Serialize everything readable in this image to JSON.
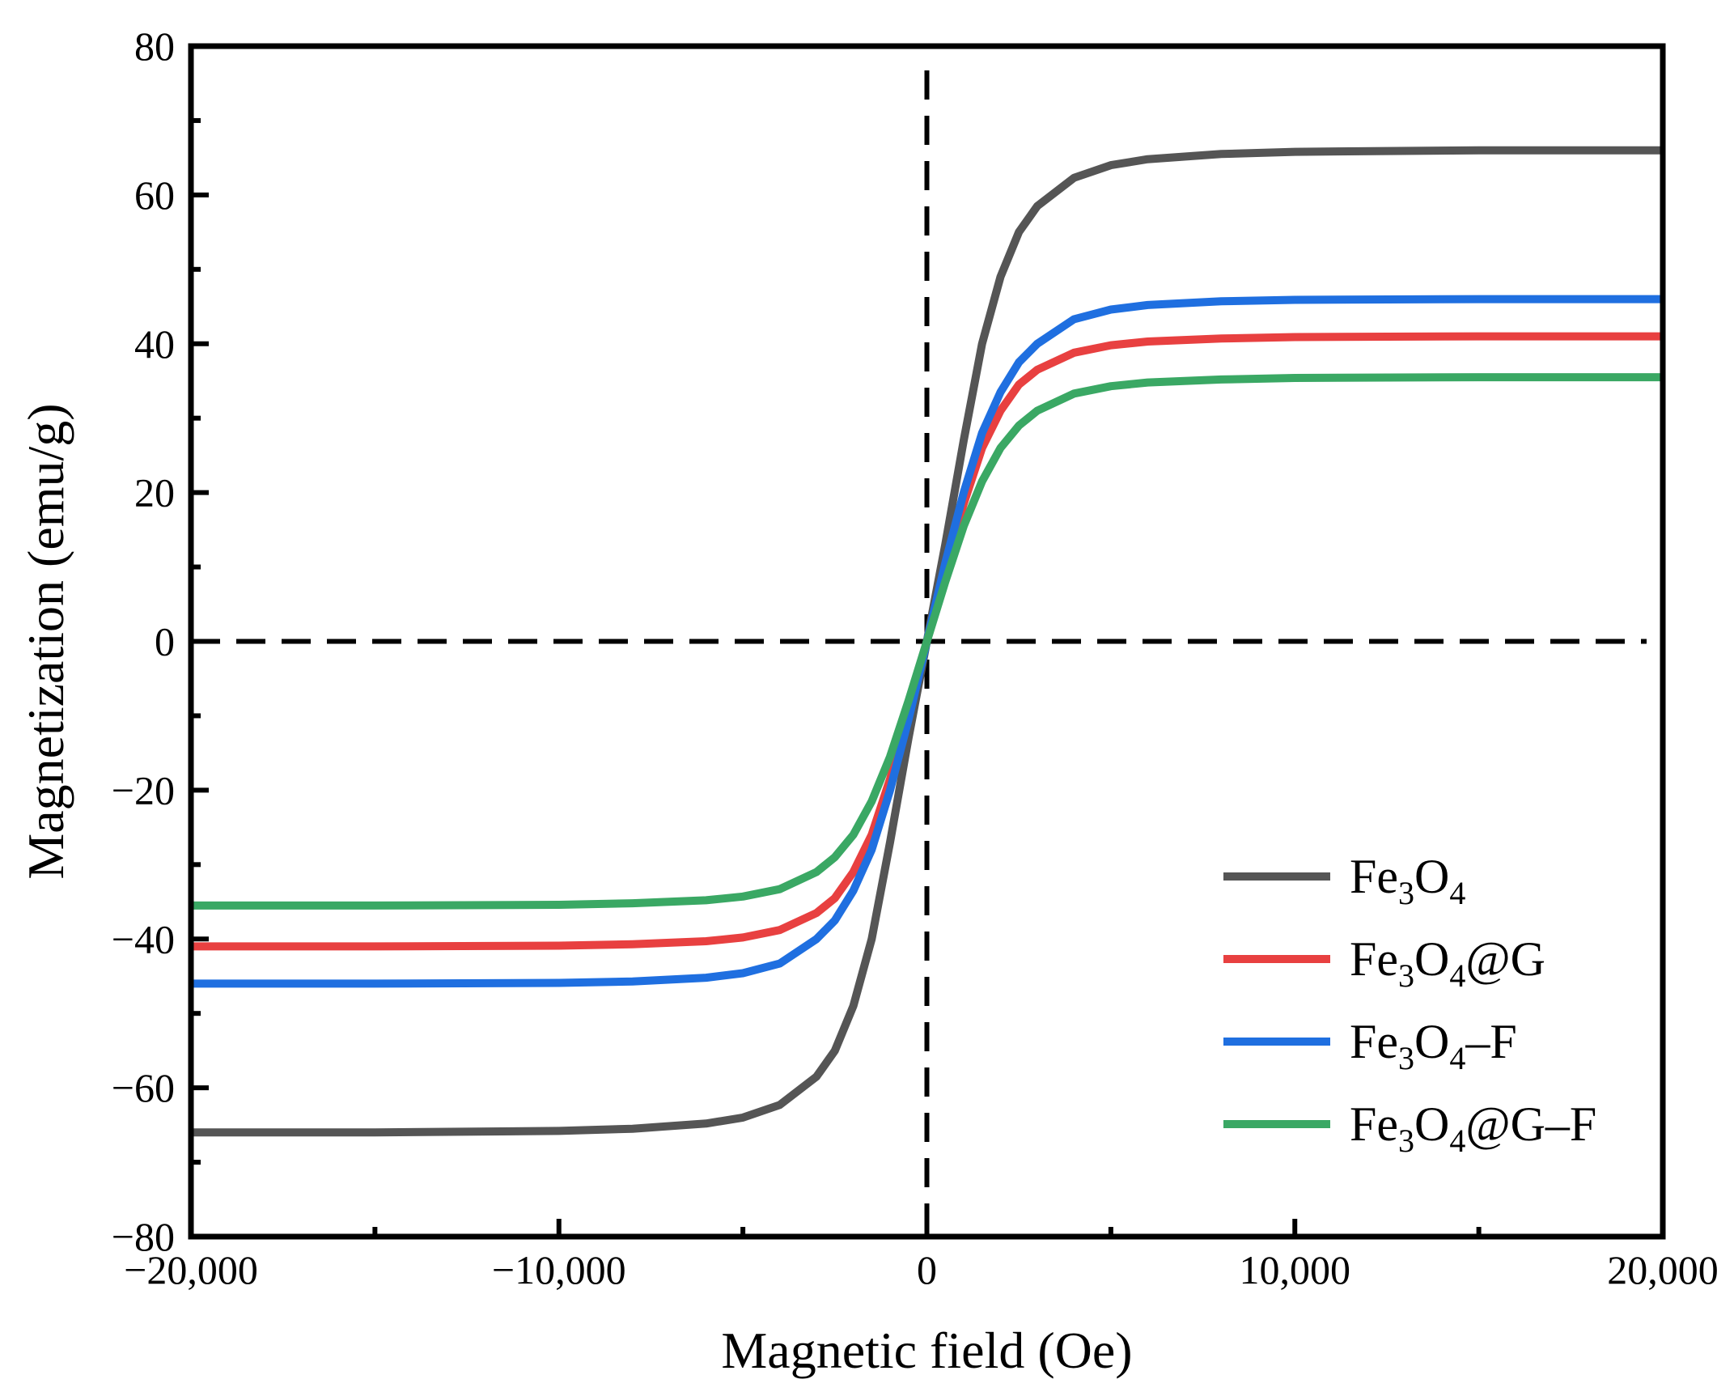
{
  "chart_data": {
    "type": "line",
    "title": "",
    "xlabel": "Magnetic field (Oe)",
    "ylabel": "Magnetization (emu/g)",
    "xlim": [
      -20000,
      20000
    ],
    "ylim": [
      -80,
      80
    ],
    "x_ticks": [
      -20000,
      -10000,
      0,
      10000,
      20000
    ],
    "x_tick_labels": [
      "−20,000",
      "−10,000",
      "0",
      "10,000",
      "20,000"
    ],
    "y_ticks": [
      -80,
      -60,
      -40,
      -20,
      0,
      20,
      40,
      60,
      80
    ],
    "y_tick_labels": [
      "−80",
      "−60",
      "−40",
      "−20",
      "0",
      "20",
      "40",
      "60",
      "80"
    ],
    "reference_lines": [
      {
        "orientation": "vertical",
        "value": 0,
        "style": "dashed"
      },
      {
        "orientation": "horizontal",
        "value": 0,
        "style": "dashed"
      }
    ],
    "legend_position": "bottom-right",
    "x": [
      -20000,
      -15000,
      -10000,
      -8000,
      -6000,
      -5000,
      -4000,
      -3000,
      -2500,
      -2000,
      -1500,
      -1000,
      -500,
      0,
      500,
      1000,
      1500,
      2000,
      2500,
      3000,
      4000,
      5000,
      6000,
      8000,
      10000,
      15000,
      20000
    ],
    "series": [
      {
        "name": "Fe3O4",
        "color": "#555555",
        "legend": {
          "base": "Fe",
          "parts": [
            {
              "sub": "3"
            },
            {
              "t": "O"
            },
            {
              "sub": "4"
            }
          ]
        },
        "values": [
          -66.0,
          -66.0,
          -65.8,
          -65.5,
          -64.8,
          -64.0,
          -62.3,
          -58.5,
          -55.0,
          -49.0,
          -40.0,
          -27.0,
          -13.0,
          0,
          13.0,
          27.0,
          40.0,
          49.0,
          55.0,
          58.5,
          62.3,
          64.0,
          64.8,
          65.5,
          65.8,
          66.0,
          66.0
        ]
      },
      {
        "name": "Fe3O4@G",
        "color": "#e84040",
        "legend": {
          "base": "Fe",
          "parts": [
            {
              "sub": "3"
            },
            {
              "t": "O"
            },
            {
              "sub": "4"
            },
            {
              "t": "@G"
            }
          ]
        },
        "values": [
          -41.0,
          -41.0,
          -40.9,
          -40.7,
          -40.3,
          -39.8,
          -38.8,
          -36.5,
          -34.5,
          -31.0,
          -26.0,
          -18.5,
          -9.5,
          0,
          9.5,
          18.5,
          26.0,
          31.0,
          34.5,
          36.5,
          38.8,
          39.8,
          40.3,
          40.7,
          40.9,
          41.0,
          41.0
        ]
      },
      {
        "name": "Fe3O4–F",
        "color": "#1f6fe0",
        "legend": {
          "base": "Fe",
          "parts": [
            {
              "sub": "3"
            },
            {
              "t": "O"
            },
            {
              "sub": "4"
            },
            {
              "t": "–F"
            }
          ]
        },
        "values": [
          -46.0,
          -46.0,
          -45.9,
          -45.7,
          -45.2,
          -44.6,
          -43.3,
          -40.0,
          -37.5,
          -33.5,
          -28.0,
          -20.0,
          -10.5,
          0,
          10.5,
          20.0,
          28.0,
          33.5,
          37.5,
          40.0,
          43.3,
          44.6,
          45.2,
          45.7,
          45.9,
          46.0,
          46.0
        ]
      },
      {
        "name": "Fe3O4@G–F",
        "color": "#3aa864",
        "legend": {
          "base": "Fe",
          "parts": [
            {
              "sub": "3"
            },
            {
              "t": "O"
            },
            {
              "sub": "4"
            },
            {
              "t": "@G–F"
            }
          ]
        },
        "values": [
          -35.5,
          -35.5,
          -35.4,
          -35.2,
          -34.8,
          -34.3,
          -33.3,
          -31.0,
          -29.0,
          -26.0,
          -21.5,
          -15.5,
          -8.0,
          0,
          8.0,
          15.5,
          21.5,
          26.0,
          29.0,
          31.0,
          33.3,
          34.3,
          34.8,
          35.2,
          35.4,
          35.5,
          35.5
        ]
      }
    ]
  }
}
